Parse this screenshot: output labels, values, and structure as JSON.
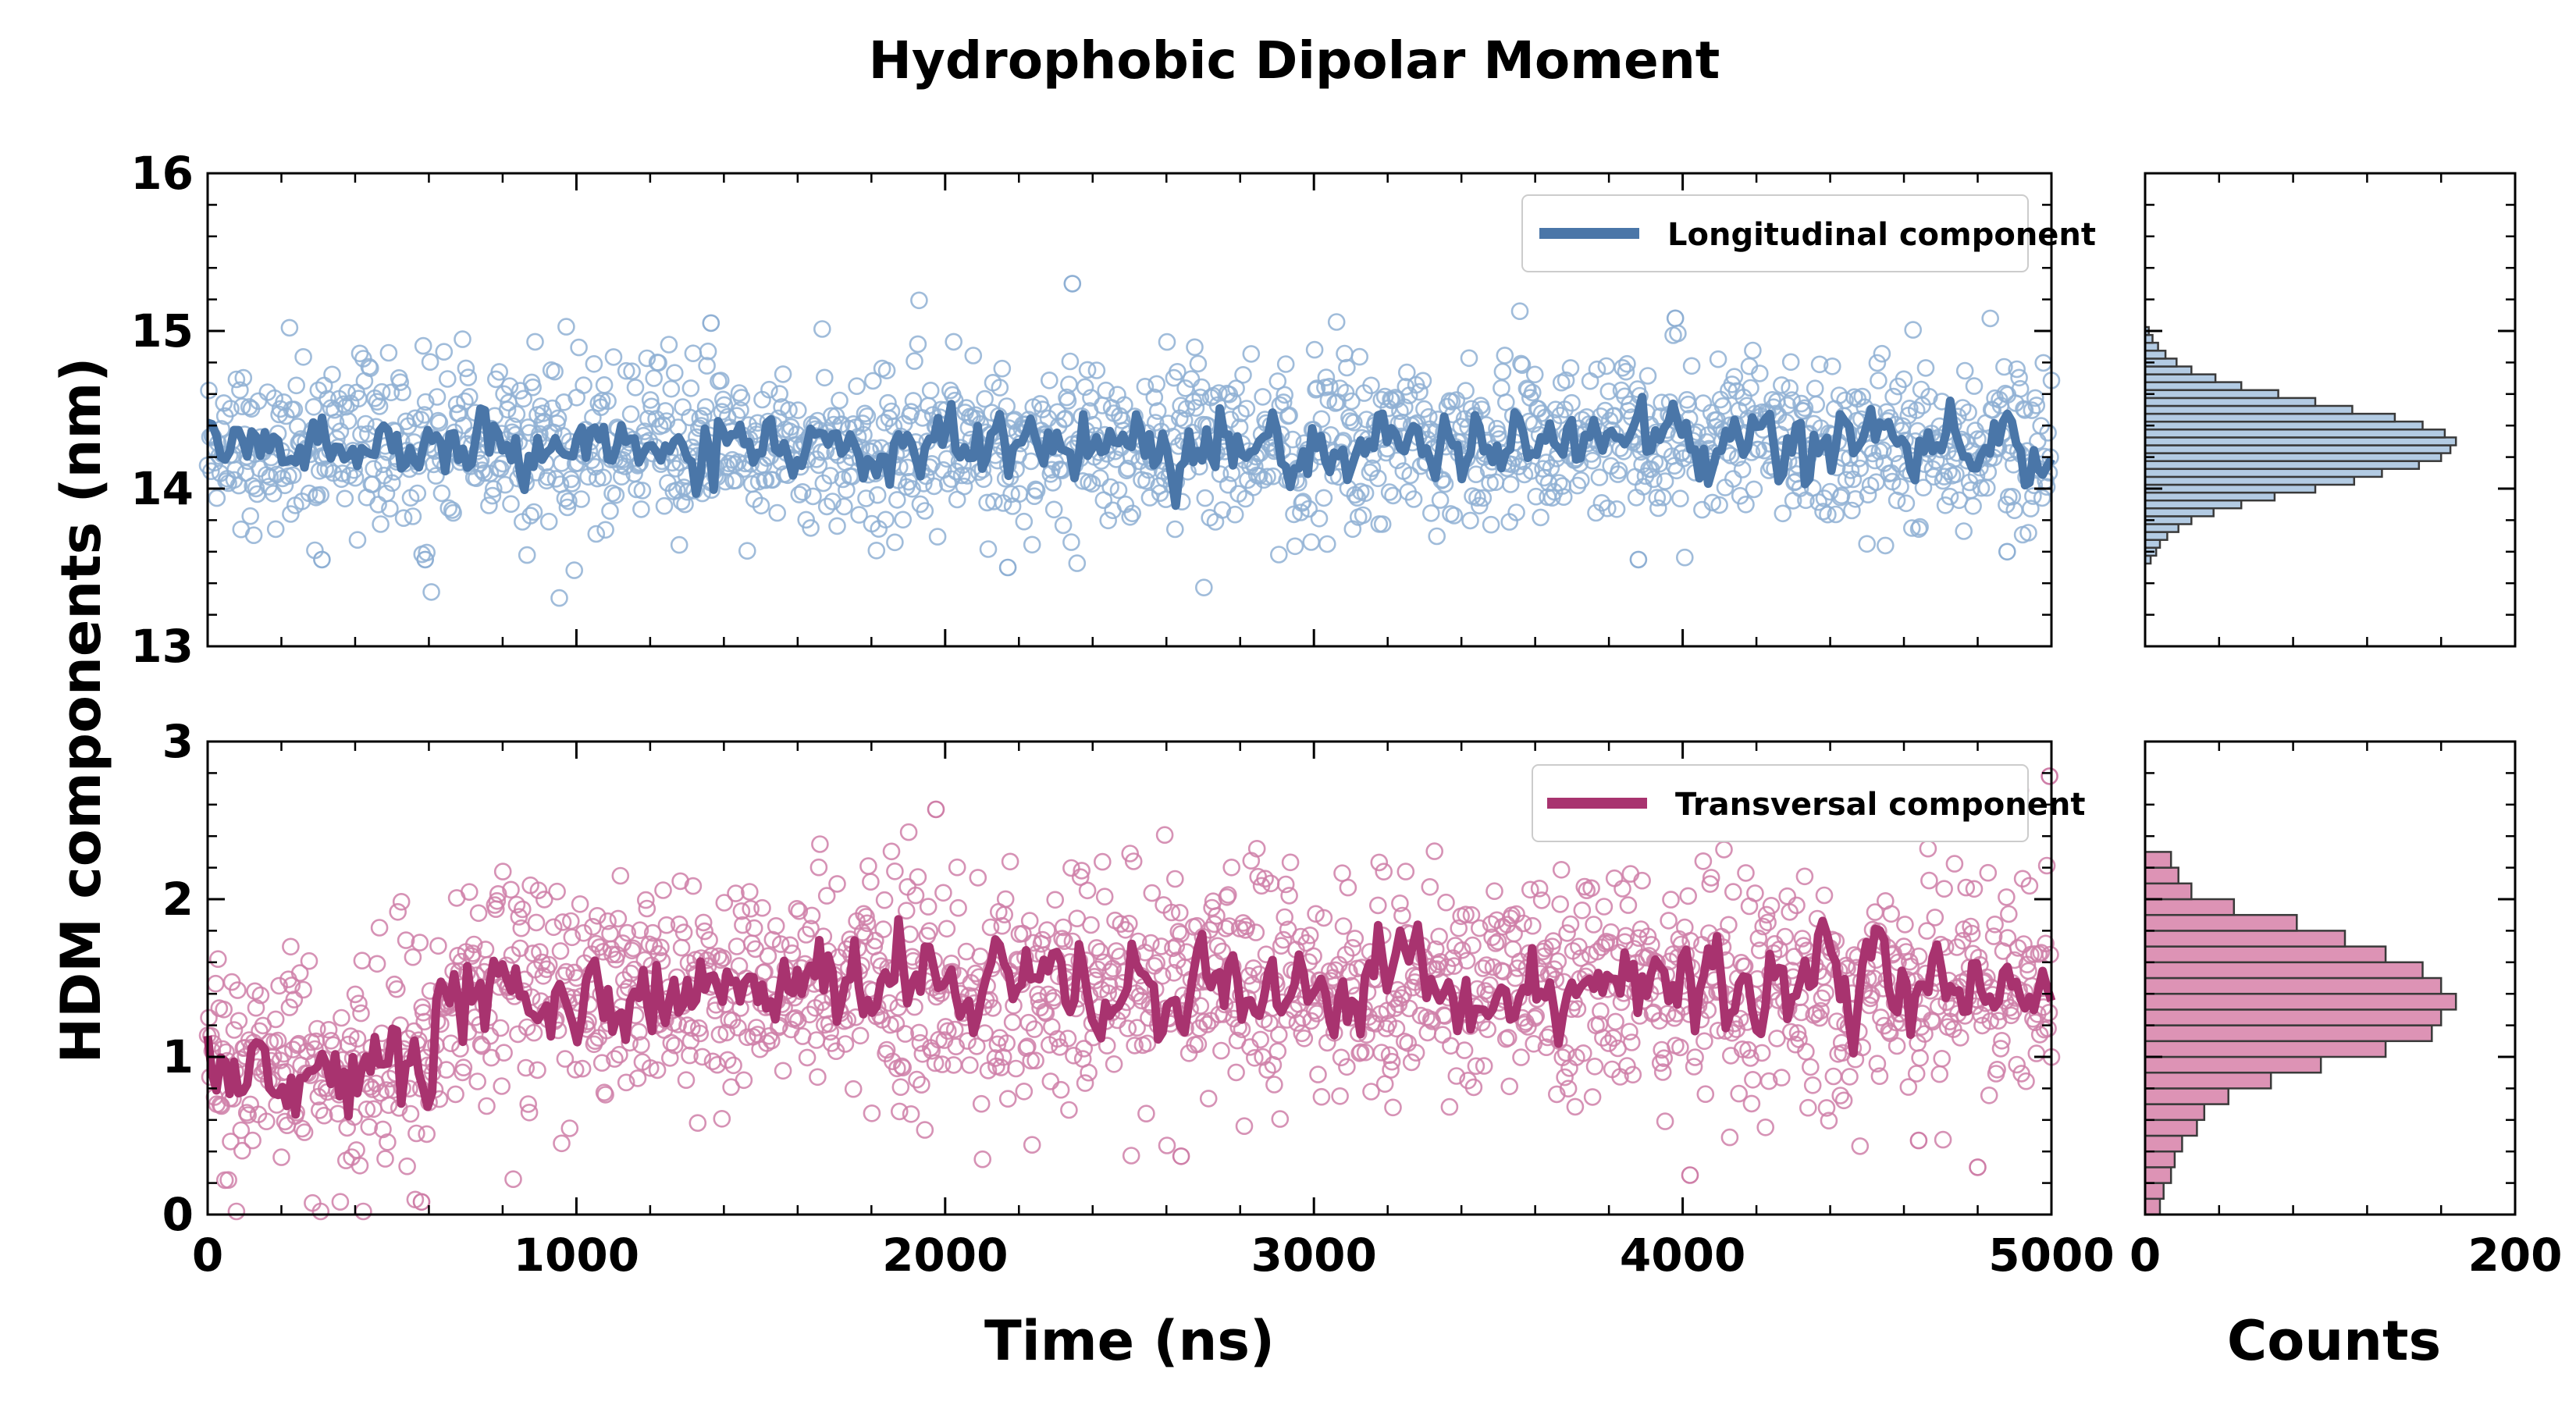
{
  "chart_data": {
    "type": "scatter",
    "title": "Hydrophobic Dipolar Moment",
    "ylabel": "HDM components (nm)",
    "xlabel": "Time (ns)",
    "hist_xlabel": "Counts",
    "colors": {
      "longitudinal": "#4a76a8",
      "longitudinal_light": "#8fb0d4",
      "transversal": "#a8336f",
      "transversal_light": "#cf7fa8",
      "hist_long": "#b3cbe3",
      "hist_trans": "#dd93b5",
      "hist_edge": "#3a3a3a"
    },
    "panels": [
      {
        "id": "longitudinal",
        "legend": "Longitudinal component",
        "xlim": [
          0,
          5000
        ],
        "ylim": [
          13,
          16
        ],
        "xticks": [
          0,
          1000,
          2000,
          3000,
          4000,
          5000
        ],
        "yticks": [
          13,
          14,
          15,
          16
        ],
        "ytick_labels": [
          "13",
          "14",
          "15",
          "16"
        ],
        "mean": 14.28,
        "scatter_sd": 0.27,
        "running_avg_sd": 0.1,
        "outliers": [
          {
            "x": 2345,
            "y": 15.3
          },
          {
            "x": 1365,
            "y": 15.05
          },
          {
            "x": 3980,
            "y": 15.08
          },
          {
            "x": 2170,
            "y": 13.5
          },
          {
            "x": 310,
            "y": 13.55
          },
          {
            "x": 590,
            "y": 13.55
          },
          {
            "x": 3880,
            "y": 13.55
          },
          {
            "x": 4880,
            "y": 13.6
          }
        ]
      },
      {
        "id": "transversal",
        "legend": "Transversal component",
        "xlim": [
          0,
          5000
        ],
        "ylim": [
          0,
          3
        ],
        "xticks": [
          0,
          1000,
          2000,
          3000,
          4000,
          5000
        ],
        "xtick_labels": [
          "0",
          "1000",
          "2000",
          "3000",
          "4000",
          "5000"
        ],
        "yticks": [
          0,
          1,
          2,
          3
        ],
        "ytick_labels": [
          "0",
          "1",
          "2",
          "3"
        ],
        "segments": [
          {
            "from": 0,
            "to": 620,
            "mean": 0.95
          },
          {
            "from": 620,
            "to": 5000,
            "mean": 1.45
          }
        ],
        "scatter_sd": 0.36,
        "running_avg_sd": 0.14,
        "outliers": [
          {
            "x": 1975,
            "y": 2.57
          },
          {
            "x": 4995,
            "y": 2.78
          },
          {
            "x": 4020,
            "y": 0.25
          },
          {
            "x": 2640,
            "y": 0.37
          },
          {
            "x": 580,
            "y": 0.08
          },
          {
            "x": 4640,
            "y": 0.47
          },
          {
            "x": 4800,
            "y": 0.3
          }
        ]
      }
    ],
    "histograms": [
      {
        "panel": "longitudinal",
        "xlim": [
          0,
          200
        ],
        "bin_centers": [
          13.55,
          13.6,
          13.65,
          13.7,
          13.75,
          13.8,
          13.85,
          13.9,
          13.95,
          14.0,
          14.05,
          14.1,
          14.15,
          14.2,
          14.25,
          14.3,
          14.35,
          14.4,
          14.45,
          14.5,
          14.55,
          14.6,
          14.65,
          14.7,
          14.75,
          14.8,
          14.85,
          14.9,
          14.95,
          15.0
        ],
        "counts": [
          3,
          6,
          8,
          12,
          18,
          25,
          37,
          52,
          70,
          92,
          113,
          128,
          148,
          160,
          165,
          168,
          162,
          150,
          135,
          112,
          92,
          72,
          52,
          38,
          25,
          17,
          11,
          7,
          4,
          2
        ]
      },
      {
        "panel": "transversal",
        "xlim": [
          0,
          200
        ],
        "bin_centers": [
          0.05,
          0.15,
          0.25,
          0.35,
          0.45,
          0.55,
          0.65,
          0.75,
          0.85,
          0.95,
          1.05,
          1.15,
          1.25,
          1.35,
          1.45,
          1.55,
          1.65,
          1.75,
          1.85,
          1.95,
          2.05,
          2.15,
          2.25
        ],
        "counts": [
          8,
          10,
          14,
          16,
          20,
          28,
          32,
          45,
          68,
          95,
          130,
          155,
          160,
          168,
          160,
          150,
          130,
          108,
          82,
          48,
          25,
          18,
          14
        ],
        "bin_width": 0.1
      }
    ],
    "hist_xticks": [
      0,
      200
    ],
    "hist_xtick_labels": [
      "0",
      "200"
    ]
  }
}
